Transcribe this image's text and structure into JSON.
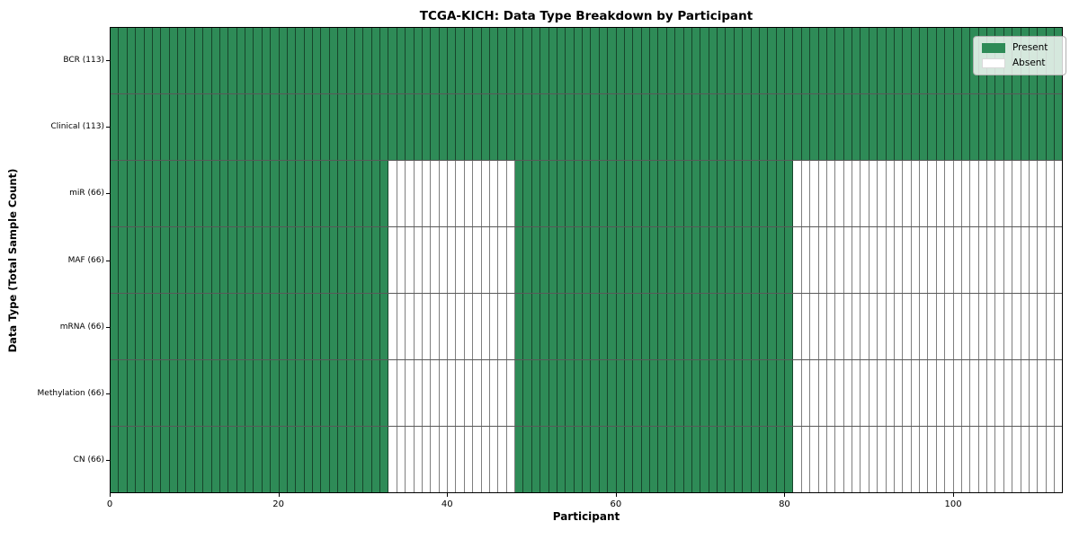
{
  "chart_data": {
    "type": "heatmap",
    "title": "TCGA-KICH: Data Type Breakdown by Participant",
    "xlabel": "Participant",
    "ylabel": "Data Type (Total Sample Count)",
    "n_participants": 113,
    "x_ticks": [
      0,
      20,
      40,
      60,
      80,
      100
    ],
    "xlim": [
      0,
      113
    ],
    "grid": "per-cell black edges",
    "legend_position": "upper right",
    "legend": [
      {
        "label": "Present",
        "state": "present"
      },
      {
        "label": "Absent",
        "state": "absent"
      }
    ],
    "rows": [
      {
        "label": "BCR (113)",
        "data_type": "BCR",
        "sample_count": 113,
        "present_ranges": [
          [
            0,
            113
          ]
        ]
      },
      {
        "label": "Clinical (113)",
        "data_type": "Clinical",
        "sample_count": 113,
        "present_ranges": [
          [
            0,
            113
          ]
        ]
      },
      {
        "label": "miR (66)",
        "data_type": "miR",
        "sample_count": 66,
        "present_ranges": [
          [
            0,
            33
          ],
          [
            48,
            81
          ]
        ]
      },
      {
        "label": "MAF (66)",
        "data_type": "MAF",
        "sample_count": 66,
        "present_ranges": [
          [
            0,
            33
          ],
          [
            48,
            81
          ]
        ]
      },
      {
        "label": "mRNA (66)",
        "data_type": "mRNA",
        "sample_count": 66,
        "present_ranges": [
          [
            0,
            33
          ],
          [
            48,
            81
          ]
        ]
      },
      {
        "label": "Methylation (66)",
        "data_type": "Methylation",
        "sample_count": 66,
        "present_ranges": [
          [
            0,
            33
          ],
          [
            48,
            81
          ]
        ]
      },
      {
        "label": "CN (66)",
        "data_type": "CN",
        "sample_count": 66,
        "present_ranges": [
          [
            0,
            33
          ],
          [
            48,
            81
          ]
        ]
      }
    ],
    "colors": {
      "present": "#2e8b57",
      "absent": "#ffffff"
    }
  }
}
